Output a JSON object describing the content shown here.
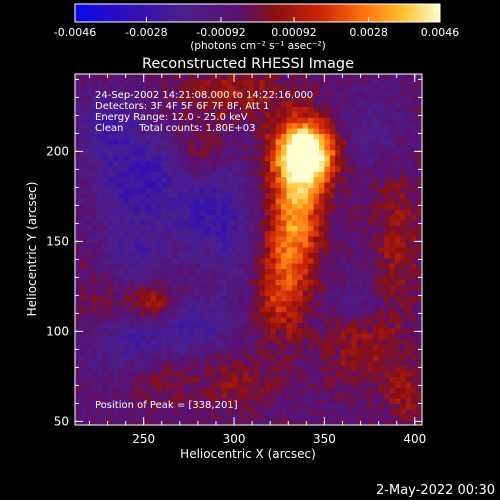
{
  "colors": {
    "background": "#000000",
    "foreground": "#ffffff",
    "colormap": [
      "#0a0ae6",
      "#3a0c9a",
      "#4a1e8c",
      "#6b1f6e",
      "#7a1010",
      "#b01a08",
      "#e0400a",
      "#ff8a1a",
      "#ffd040",
      "#ffffc8"
    ]
  },
  "colorbar": {
    "tick_labels": [
      "-0.0046",
      "-0.0028",
      "-0.00092",
      "0.00092",
      "0.0028",
      "0.0046"
    ],
    "tick_values": [
      -0.0046,
      -0.0028,
      -0.00092,
      0.00092,
      0.0028,
      0.0046
    ],
    "unit_label": "(photons cm⁻² s⁻¹ asec⁻²)"
  },
  "footer": {
    "date_stamp": "2-May-2022 00:30"
  },
  "chart_data": {
    "type": "heatmap",
    "title": "Reconstructed RHESSI Image",
    "xlabel": "Heliocentric X (arcsec)",
    "ylabel": "Heliocentric Y (arcsec)",
    "xlim": [
      212,
      404
    ],
    "ylim": [
      48,
      243
    ],
    "x_ticks": [
      250,
      300,
      350,
      400
    ],
    "y_ticks": [
      50,
      100,
      150,
      200
    ],
    "color_range": [
      -0.0046,
      0.0046
    ],
    "info_lines": [
      "24-Sep-2002 14:21:08.000 to 14:22:16.000",
      "Detectors: 3F 4F 5F 6F 7F 8F, Att 1",
      "Energy Range: 12.0 - 25.0 keV",
      "Clean     Total counts: 1.80E+03"
    ],
    "peak_label": "Position of Peak = [338,201]",
    "peak": [
      338,
      201
    ],
    "features": [
      {
        "x": 340,
        "y": 200,
        "sx": 12,
        "sy": 12,
        "amp": 0.0056
      },
      {
        "x": 336,
        "y": 180,
        "sx": 10,
        "sy": 22,
        "amp": 0.0028
      },
      {
        "x": 332,
        "y": 150,
        "sx": 10,
        "sy": 22,
        "amp": 0.0022
      },
      {
        "x": 325,
        "y": 120,
        "sx": 9,
        "sy": 18,
        "amp": 0.0018
      },
      {
        "x": 300,
        "y": 232,
        "sx": 22,
        "sy": 10,
        "amp": 0.0014
      },
      {
        "x": 280,
        "y": 200,
        "sx": 10,
        "sy": 10,
        "amp": 0.0009
      },
      {
        "x": 255,
        "y": 117,
        "sx": 8,
        "sy": 8,
        "amp": 0.0016
      },
      {
        "x": 232,
        "y": 120,
        "sx": 18,
        "sy": 18,
        "amp": 0.0008
      },
      {
        "x": 258,
        "y": 75,
        "sx": 10,
        "sy": 10,
        "amp": 0.0009
      },
      {
        "x": 300,
        "y": 72,
        "sx": 16,
        "sy": 10,
        "amp": 0.0011
      },
      {
        "x": 390,
        "y": 150,
        "sx": 10,
        "sy": 30,
        "amp": 0.0013
      },
      {
        "x": 370,
        "y": 90,
        "sx": 16,
        "sy": 14,
        "amp": 0.0012
      },
      {
        "x": 395,
        "y": 65,
        "sx": 8,
        "sy": 12,
        "amp": 0.0012
      },
      {
        "x": 248,
        "y": 185,
        "sx": 18,
        "sy": 18,
        "amp": -0.0022
      },
      {
        "x": 245,
        "y": 140,
        "sx": 14,
        "sy": 14,
        "amp": -0.0016
      },
      {
        "x": 245,
        "y": 95,
        "sx": 18,
        "sy": 12,
        "amp": -0.0018
      },
      {
        "x": 280,
        "y": 105,
        "sx": 12,
        "sy": 10,
        "amp": -0.0014
      },
      {
        "x": 285,
        "y": 165,
        "sx": 14,
        "sy": 16,
        "amp": -0.0016
      },
      {
        "x": 230,
        "y": 215,
        "sx": 12,
        "sy": 12,
        "amp": -0.0016
      },
      {
        "x": 300,
        "y": 150,
        "sx": 10,
        "sy": 30,
        "amp": -0.0008
      },
      {
        "x": 375,
        "y": 210,
        "sx": 14,
        "sy": 16,
        "amp": -0.001
      },
      {
        "x": 370,
        "y": 120,
        "sx": 12,
        "sy": 12,
        "amp": -0.0006
      }
    ]
  }
}
